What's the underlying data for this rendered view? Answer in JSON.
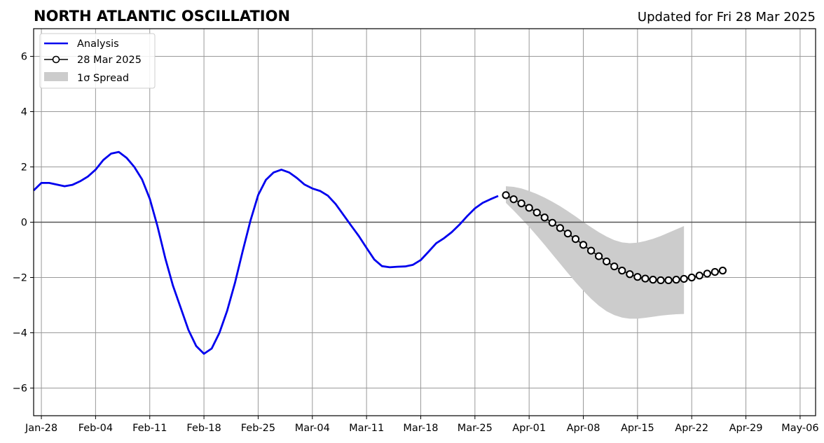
{
  "chart_data": {
    "type": "line",
    "title": "NORTH ATLANTIC OSCILLATION",
    "subtitle": "Updated for Fri 28 Mar 2025",
    "xlabel": "",
    "ylabel": "",
    "xlim": [
      "2025-01-27",
      "2025-05-08"
    ],
    "ylim": [
      -7,
      7
    ],
    "grid": true,
    "legend_position": "top-left",
    "x_ticks": [
      {
        "date": "2025-01-28",
        "label": "Jan-28"
      },
      {
        "date": "2025-02-04",
        "label": "Feb-04"
      },
      {
        "date": "2025-02-11",
        "label": "Feb-11"
      },
      {
        "date": "2025-02-18",
        "label": "Feb-18"
      },
      {
        "date": "2025-02-25",
        "label": "Feb-25"
      },
      {
        "date": "2025-03-04",
        "label": "Mar-04"
      },
      {
        "date": "2025-03-11",
        "label": "Mar-11"
      },
      {
        "date": "2025-03-18",
        "label": "Mar-18"
      },
      {
        "date": "2025-03-25",
        "label": "Mar-25"
      },
      {
        "date": "2025-04-01",
        "label": "Apr-01"
      },
      {
        "date": "2025-04-08",
        "label": "Apr-08"
      },
      {
        "date": "2025-04-15",
        "label": "Apr-15"
      },
      {
        "date": "2025-04-22",
        "label": "Apr-22"
      },
      {
        "date": "2025-04-29",
        "label": "Apr-29"
      },
      {
        "date": "2025-05-06",
        "label": "May-06"
      }
    ],
    "y_ticks": [
      {
        "value": -6,
        "label": "−6"
      },
      {
        "value": -4,
        "label": "−4"
      },
      {
        "value": -2,
        "label": "−2"
      },
      {
        "value": 0,
        "label": "0"
      },
      {
        "value": 2,
        "label": "2"
      },
      {
        "value": 4,
        "label": "4"
      },
      {
        "value": 6,
        "label": "6"
      }
    ],
    "analysis": {
      "name": "Analysis",
      "color": "#0000ee",
      "start_date": "2025-01-27",
      "values": [
        1.15,
        1.42,
        1.42,
        1.36,
        1.3,
        1.35,
        1.48,
        1.65,
        1.9,
        2.25,
        2.48,
        2.54,
        2.33,
        2.0,
        1.55,
        0.85,
        -0.15,
        -1.3,
        -2.3,
        -3.1,
        -3.9,
        -4.48,
        -4.76,
        -4.57,
        -4.0,
        -3.2,
        -2.2,
        -1.05,
        0.05,
        0.98,
        1.53,
        1.8,
        1.9,
        1.8,
        1.6,
        1.36,
        1.22,
        1.13,
        0.96,
        0.66,
        0.27,
        -0.12,
        -0.5,
        -0.93,
        -1.35,
        -1.59,
        -1.63,
        -1.61,
        -1.6,
        -1.54,
        -1.37,
        -1.07,
        -0.76,
        -0.58,
        -0.36,
        -0.09,
        0.22,
        0.5,
        0.7,
        0.83,
        0.95
      ]
    },
    "forecast": {
      "name": "28 Mar 2025",
      "color": "#000000",
      "start_date": "2025-03-29",
      "values": [
        0.98,
        0.83,
        0.68,
        0.52,
        0.35,
        0.17,
        -0.02,
        -0.21,
        -0.41,
        -0.61,
        -0.82,
        -1.03,
        -1.23,
        -1.42,
        -1.6,
        -1.75,
        -1.88,
        -1.98,
        -2.04,
        -2.08,
        -2.1,
        -2.1,
        -2.08,
        -2.05,
        -2.0,
        -1.93,
        -1.86,
        -1.8,
        -1.75
      ]
    },
    "spread": {
      "name": "1σ Spread",
      "color": "#cccccc",
      "upper": [
        1.3,
        1.28,
        1.22,
        1.13,
        1.02,
        0.89,
        0.74,
        0.58,
        0.4,
        0.21,
        0.01,
        -0.18,
        -0.36,
        -0.52,
        -0.65,
        -0.73,
        -0.76,
        -0.74,
        -0.68,
        -0.6,
        -0.5,
        -0.38,
        -0.26,
        -0.14
      ],
      "lower": [
        0.7,
        0.42,
        0.13,
        -0.17,
        -0.49,
        -0.82,
        -1.16,
        -1.5,
        -1.84,
        -2.17,
        -2.48,
        -2.77,
        -3.02,
        -3.22,
        -3.36,
        -3.45,
        -3.49,
        -3.49,
        -3.46,
        -3.42,
        -3.38,
        -3.35,
        -3.33,
        -3.32
      ]
    },
    "zero_line": 0
  }
}
